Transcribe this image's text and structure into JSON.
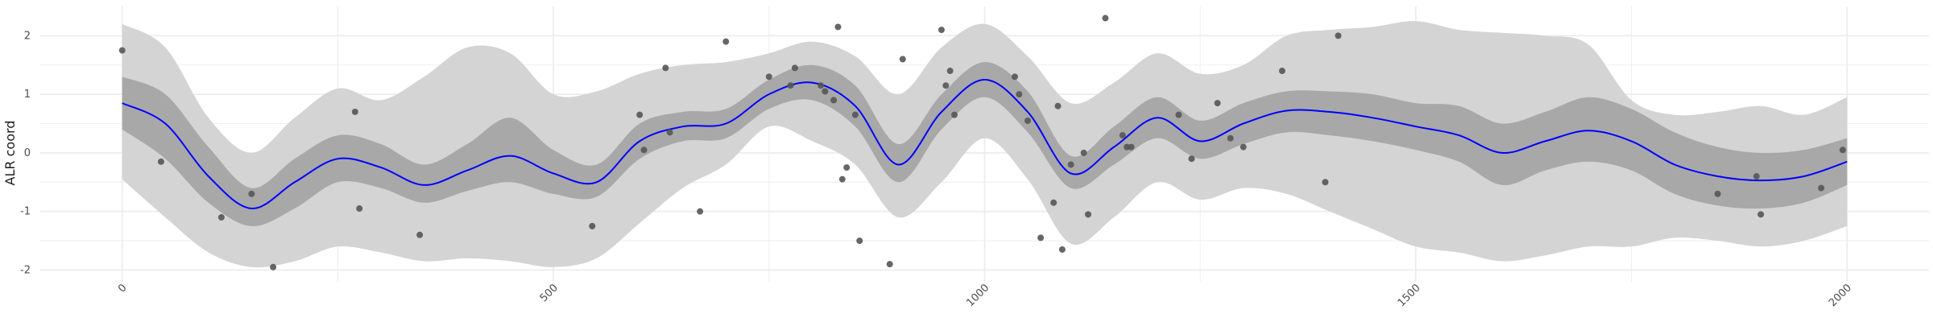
{
  "chart_data": {
    "type": "line",
    "title": "",
    "xlabel": "",
    "ylabel": "ALR coord",
    "xlim": [
      -95,
      2095
    ],
    "ylim": [
      -2.2,
      2.5
    ],
    "x_ticks": [
      0,
      500,
      1000,
      1500,
      2000
    ],
    "x_tick_labels": [
      "0",
      "500",
      "1000",
      "1500",
      "2000"
    ],
    "y_ticks": [
      -2,
      -1,
      0,
      1,
      2
    ],
    "y_tick_labels": [
      "-2",
      "-1",
      "0",
      "1",
      "2"
    ],
    "grid": true,
    "legend": "none",
    "colors": {
      "mean_line": "#0000ff",
      "inner_band": "#a8a8a8",
      "outer_band": "#d4d4d4",
      "points": "#555555",
      "grid": "#ebebeb"
    },
    "mean": {
      "x": [
        0,
        50,
        100,
        150,
        200,
        250,
        300,
        350,
        400,
        450,
        500,
        550,
        600,
        650,
        700,
        750,
        800,
        850,
        900,
        950,
        1000,
        1050,
        1100,
        1150,
        1200,
        1250,
        1300,
        1350,
        1400,
        1450,
        1500,
        1550,
        1600,
        1650,
        1700,
        1750,
        1800,
        1850,
        1900,
        1950,
        2000
      ],
      "y": [
        0.85,
        0.5,
        -0.4,
        -0.95,
        -0.5,
        -0.1,
        -0.25,
        -0.55,
        -0.3,
        -0.05,
        -0.35,
        -0.5,
        0.2,
        0.45,
        0.5,
        1.0,
        1.2,
        0.8,
        -0.2,
        0.7,
        1.25,
        0.7,
        -0.35,
        0.1,
        0.6,
        0.2,
        0.5,
        0.72,
        0.7,
        0.6,
        0.45,
        0.3,
        0.0,
        0.2,
        0.38,
        0.2,
        -0.2,
        -0.4,
        -0.47,
        -0.4,
        -0.15
      ]
    },
    "inner_band": {
      "lower": [
        0.4,
        -0.1,
        -0.85,
        -1.25,
        -0.95,
        -0.5,
        -0.6,
        -0.85,
        -0.65,
        -0.5,
        -0.7,
        -0.75,
        -0.1,
        0.2,
        0.25,
        0.75,
        0.9,
        0.45,
        -0.5,
        0.4,
        0.95,
        0.35,
        -0.6,
        -0.2,
        0.25,
        -0.1,
        0.15,
        0.35,
        0.3,
        0.2,
        0.05,
        -0.15,
        -0.55,
        -0.3,
        -0.15,
        -0.3,
        -0.7,
        -0.9,
        -0.95,
        -0.85,
        -0.55
      ],
      "upper": [
        1.3,
        1.0,
        0.1,
        -0.6,
        -0.1,
        0.3,
        0.15,
        -0.2,
        0.15,
        0.6,
        0.05,
        -0.2,
        0.5,
        0.7,
        0.75,
        1.25,
        1.5,
        1.15,
        0.15,
        1.0,
        1.55,
        1.05,
        -0.05,
        0.45,
        0.95,
        0.55,
        0.85,
        1.05,
        1.05,
        1.0,
        0.85,
        0.8,
        0.5,
        0.7,
        0.95,
        0.75,
        0.35,
        0.1,
        0.0,
        0.05,
        0.25
      ]
    },
    "outer_band": {
      "lower": [
        -0.45,
        -1.1,
        -1.7,
        -1.95,
        -1.85,
        -1.6,
        -1.7,
        -1.85,
        -1.8,
        -1.85,
        -1.95,
        -1.8,
        -1.2,
        -0.6,
        -0.2,
        0.45,
        0.2,
        -0.2,
        -1.1,
        -0.5,
        0.25,
        -0.45,
        -1.55,
        -1.1,
        -0.5,
        -0.8,
        -0.6,
        -0.7,
        -1.0,
        -1.3,
        -1.6,
        -1.7,
        -1.85,
        -1.75,
        -1.6,
        -1.6,
        -1.45,
        -1.5,
        -1.6,
        -1.5,
        -1.25
      ]
    },
    "outer_band_upper": [
      2.2,
      1.8,
      0.6,
      0.0,
      0.6,
      1.1,
      0.9,
      1.3,
      1.8,
      1.7,
      1.0,
      1.05,
      1.35,
      1.5,
      1.55,
      1.7,
      1.9,
      1.65,
      1.0,
      1.8,
      2.2,
      1.65,
      0.85,
      1.2,
      1.7,
      1.35,
      1.5,
      2.0,
      2.1,
      2.15,
      2.25,
      2.1,
      2.05,
      2.0,
      1.85,
      0.9,
      0.65,
      0.7,
      0.8,
      0.65,
      0.95
    ],
    "points": {
      "x": [
        0,
        45,
        115,
        150,
        175,
        270,
        275,
        345,
        545,
        600,
        605,
        630,
        635,
        670,
        700,
        750,
        775,
        780,
        810,
        815,
        825,
        830,
        835,
        840,
        850,
        855,
        890,
        905,
        950,
        955,
        960,
        965,
        1035,
        1040,
        1050,
        1065,
        1080,
        1085,
        1090,
        1100,
        1115,
        1120,
        1140,
        1160,
        1165,
        1170,
        1225,
        1240,
        1270,
        1285,
        1300,
        1345,
        1395,
        1410,
        1850,
        1895,
        1900,
        1970,
        1995
      ],
      "y": [
        1.75,
        -0.15,
        -1.1,
        -0.7,
        -1.95,
        0.7,
        -0.95,
        -1.4,
        -1.25,
        0.65,
        0.05,
        1.45,
        0.35,
        -1.0,
        1.9,
        1.3,
        1.15,
        1.45,
        1.15,
        1.05,
        0.9,
        2.15,
        -0.45,
        -0.25,
        0.65,
        -1.5,
        -1.9,
        1.6,
        2.1,
        1.15,
        1.4,
        0.65,
        1.3,
        1.0,
        0.55,
        -1.45,
        -0.85,
        0.8,
        -1.65,
        -0.2,
        0.0,
        -1.05,
        2.3,
        0.3,
        0.1,
        0.1,
        0.65,
        -0.1,
        0.85,
        0.25,
        0.1,
        1.4,
        -0.5,
        2.0,
        -0.7,
        -0.4,
        -1.05,
        -0.6,
        0.05
      ]
    }
  }
}
